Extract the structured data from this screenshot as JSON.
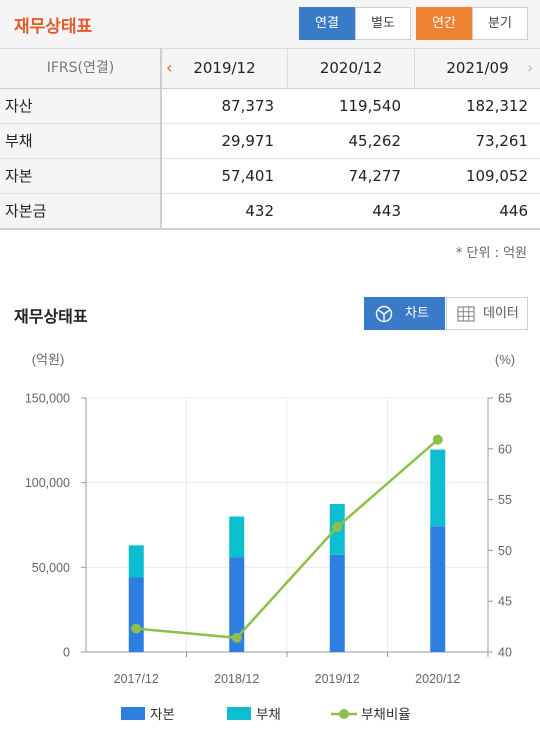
{
  "header": {
    "title": "재무상태표",
    "btn_consolidated": "연결",
    "btn_separate": "별도",
    "btn_annual": "연간",
    "btn_quarterly": "분기"
  },
  "table": {
    "header_label": "IFRS(연결)",
    "periods": [
      "2019/12",
      "2020/12",
      "2021/09"
    ],
    "rows": [
      {
        "label": "자산",
        "values": [
          "87,373",
          "119,540",
          "182,312"
        ]
      },
      {
        "label": "부채",
        "values": [
          "29,971",
          "45,262",
          "73,261"
        ]
      },
      {
        "label": "자본",
        "values": [
          "57,401",
          "74,277",
          "109,052"
        ]
      },
      {
        "label": "자본금",
        "values": [
          "432",
          "443",
          "446"
        ]
      }
    ],
    "unit_note": "* 단위 : 억원"
  },
  "section": {
    "title": "재무상태표",
    "btn_chart": "차트",
    "btn_data": "데이터"
  },
  "colors": {
    "equity": "#2e7de0",
    "liability": "#0bbfd1",
    "ratio": "#8cc04b"
  },
  "chart_data": {
    "type": "bar",
    "stacked": true,
    "categories": [
      "2017/12",
      "2018/12",
      "2019/12",
      "2020/12"
    ],
    "series": [
      {
        "name": "자본",
        "values": [
          44000,
          56000,
          57401,
          74277
        ],
        "axis": "left"
      },
      {
        "name": "부채",
        "values": [
          19000,
          24000,
          29971,
          45262
        ],
        "axis": "left"
      },
      {
        "name": "부채비율",
        "type": "line",
        "values": [
          42.3,
          41.4,
          52.3,
          60.9
        ],
        "axis": "right"
      }
    ],
    "ylabel_left": "(억원)",
    "ylabel_right": "(%)",
    "ylim_left": [
      0,
      150000
    ],
    "ylim_right": [
      40,
      65
    ],
    "yticks_left": [
      "0",
      "50,000",
      "100,000",
      "150,000"
    ],
    "yticks_right": [
      "40",
      "45",
      "50",
      "55",
      "60",
      "65"
    ],
    "grid": true,
    "legend_position": "bottom"
  }
}
